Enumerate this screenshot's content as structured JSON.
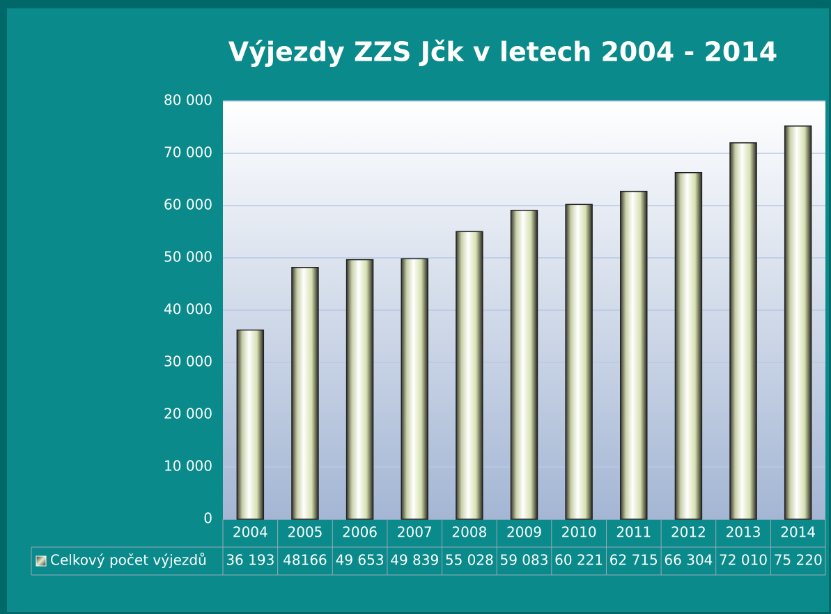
{
  "chart_data": {
    "type": "bar",
    "title": "Výjezdy ZZS Jčk v letech 2004 - 2014",
    "categories": [
      "2004",
      "2005",
      "2006",
      "2007",
      "2008",
      "2009",
      "2010",
      "2011",
      "2012",
      "2013",
      "2014"
    ],
    "series": [
      {
        "name": "Celkový počet výjezdů",
        "color": "#e4ecc8",
        "values": [
          36193,
          48166,
          49653,
          49839,
          55028,
          59083,
          60221,
          62715,
          66304,
          72010,
          75220
        ],
        "value_labels": [
          "36 193",
          "48166",
          "49 653",
          "49 839",
          "55 028",
          "59 083",
          "60 221",
          "62 715",
          "66 304",
          "72 010",
          "75 220"
        ]
      }
    ],
    "ylim": [
      0,
      80000
    ],
    "yticks": [
      {
        "value": 0,
        "label": "0"
      },
      {
        "value": 10000,
        "label": "10 000"
      },
      {
        "value": 20000,
        "label": "20 000"
      },
      {
        "value": 30000,
        "label": "30 000"
      },
      {
        "value": 40000,
        "label": "40 000"
      },
      {
        "value": 50000,
        "label": "50 000"
      },
      {
        "value": 60000,
        "label": "60 000"
      },
      {
        "value": 70000,
        "label": "70 000"
      },
      {
        "value": 80000,
        "label": "80 000"
      }
    ],
    "grid": true
  }
}
